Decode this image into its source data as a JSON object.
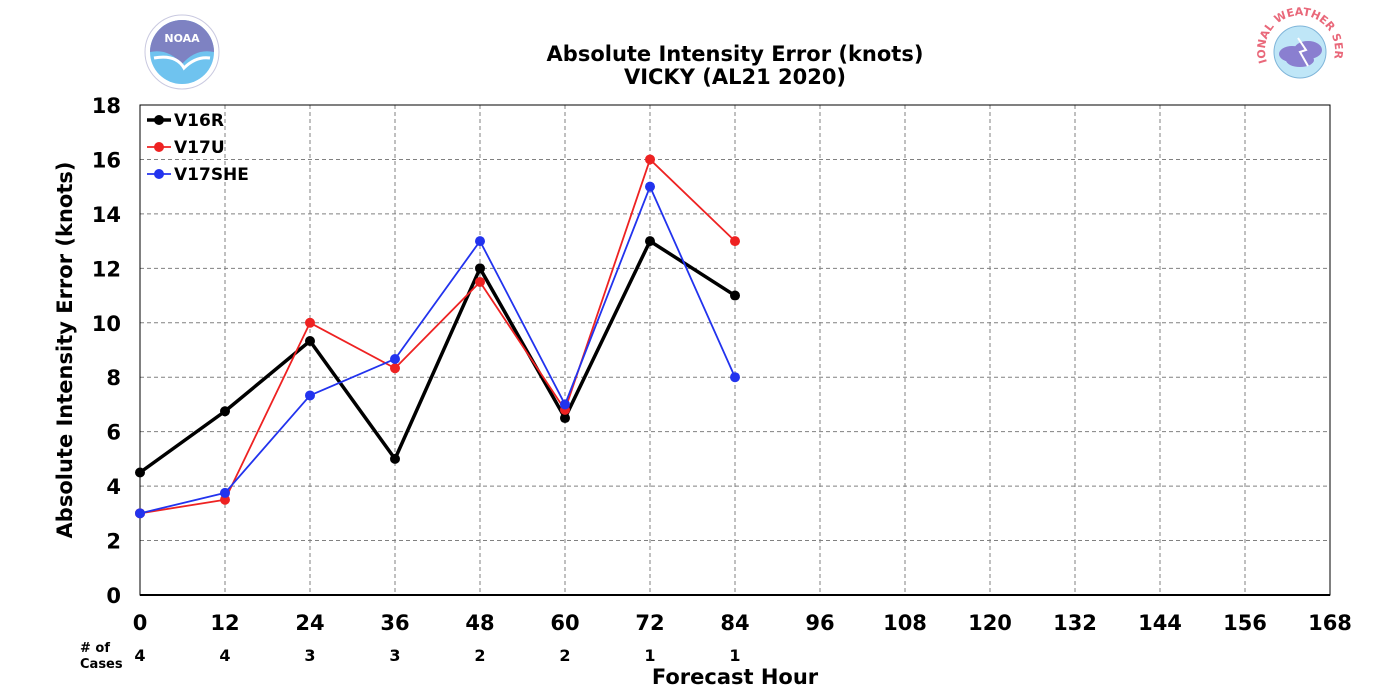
{
  "logos": {
    "left": {
      "name": "NOAA",
      "text": "NOAA"
    },
    "right": {
      "name": "National Weather Service",
      "ring_text": "NATIONAL WEATHER SERVICE",
      "color": "#e9687a"
    }
  },
  "chart_data": {
    "type": "line",
    "title": "Absolute Intensity Error (knots)",
    "subtitle": "VICKY (AL21 2020)",
    "xlabel": "Forecast Hour",
    "ylabel": "Absolute Intensity Error (knots)",
    "xlim": [
      0,
      168
    ],
    "ylim": [
      0,
      18
    ],
    "x_ticks": [
      0,
      12,
      24,
      36,
      48,
      60,
      72,
      84,
      96,
      108,
      120,
      132,
      144,
      156,
      168
    ],
    "y_ticks": [
      0,
      2,
      4,
      6,
      8,
      10,
      12,
      14,
      16,
      18
    ],
    "grid": true,
    "legend_position": "top-left",
    "cases_label_line1": "# of",
    "cases_label_line2": "Cases",
    "cases": [
      {
        "x": 0,
        "n": "4"
      },
      {
        "x": 12,
        "n": "4"
      },
      {
        "x": 24,
        "n": "3"
      },
      {
        "x": 36,
        "n": "3"
      },
      {
        "x": 48,
        "n": "2"
      },
      {
        "x": 60,
        "n": "2"
      },
      {
        "x": 72,
        "n": "1"
      },
      {
        "x": 84,
        "n": "1"
      }
    ],
    "series": [
      {
        "name": "V16R",
        "color": "#000000",
        "x": [
          0,
          12,
          24,
          36,
          48,
          60,
          72,
          84
        ],
        "values": [
          4.5,
          6.75,
          9.33,
          5.0,
          12.0,
          6.5,
          13.0,
          11.0
        ]
      },
      {
        "name": "V17U",
        "color": "#ee2222",
        "x": [
          0,
          12,
          24,
          36,
          48,
          60,
          72,
          84
        ],
        "values": [
          3.0,
          3.5,
          10.0,
          8.33,
          11.5,
          6.8,
          16.0,
          13.0
        ]
      },
      {
        "name": "V17SHE",
        "color": "#2233ee",
        "x": [
          0,
          12,
          24,
          36,
          48,
          60,
          72,
          84
        ],
        "values": [
          3.0,
          3.75,
          7.33,
          8.67,
          13.0,
          7.0,
          15.0,
          8.0
        ]
      }
    ]
  }
}
